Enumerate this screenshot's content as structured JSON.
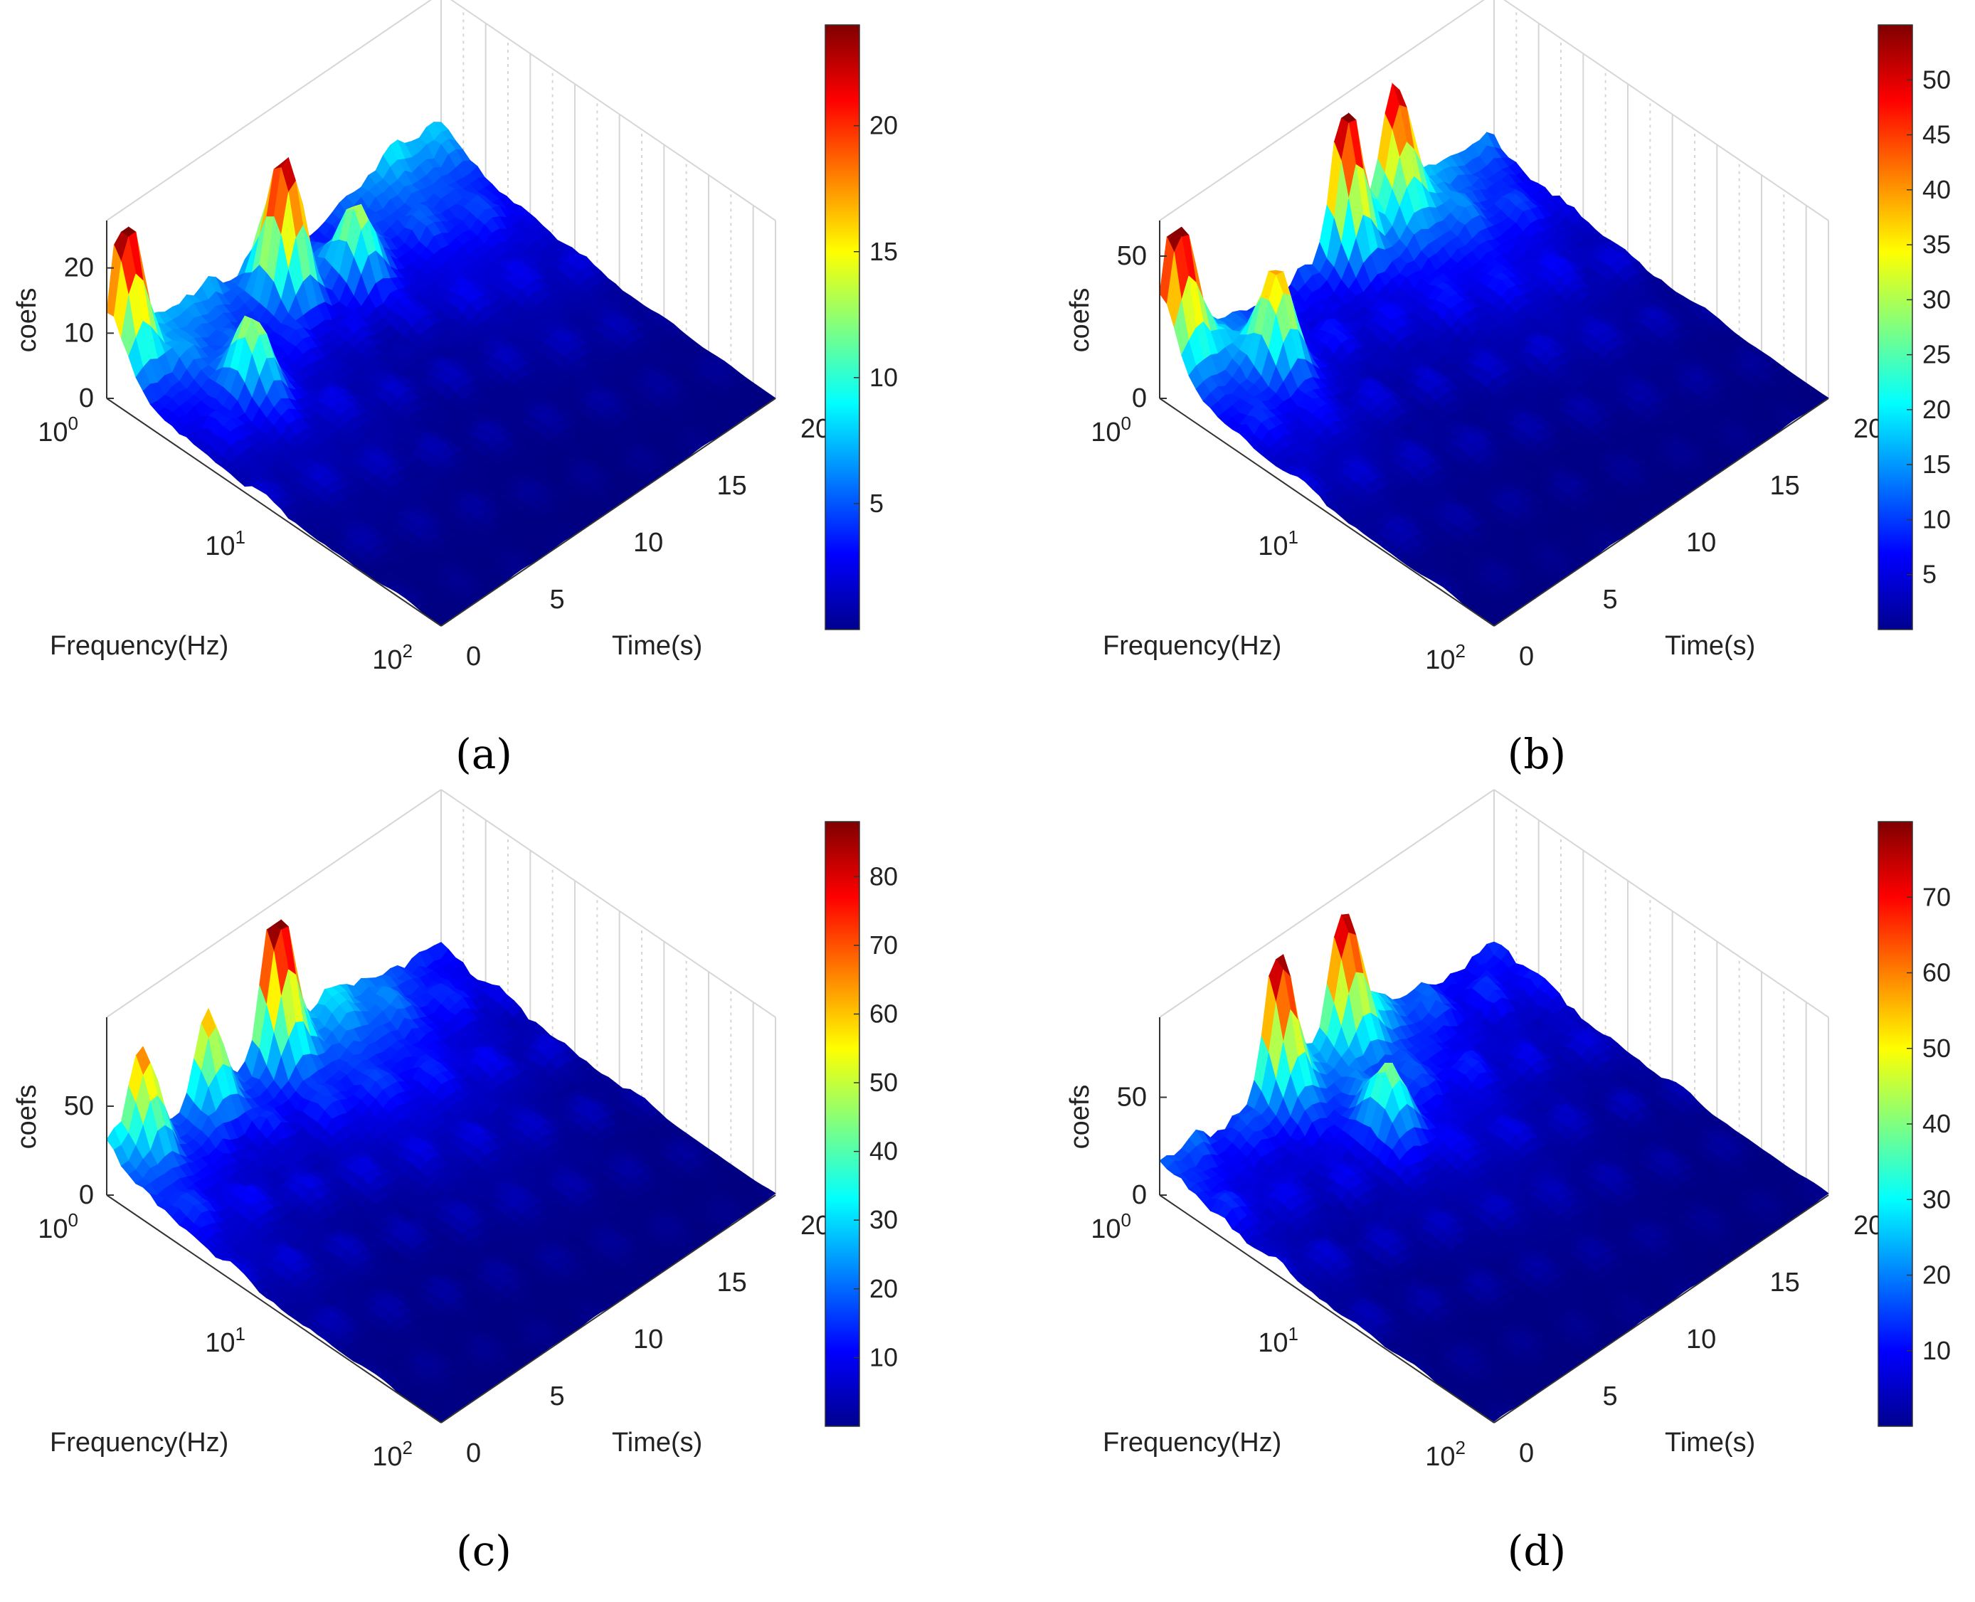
{
  "figure": {
    "panels": [
      {
        "caption": "(a)"
      },
      {
        "caption": "(b)"
      },
      {
        "caption": "(c)"
      },
      {
        "caption": "(d)"
      }
    ]
  },
  "chart_data": [
    {
      "type": "surface",
      "zlabel": "coefs",
      "xlabel": "Frequency(Hz)",
      "ylabel": "Time(s)",
      "x_scale": "log",
      "x_ticks": [
        "10^0",
        "10^1",
        "10^2"
      ],
      "y_ticks": [
        "0",
        "5",
        "10",
        "15",
        "20"
      ],
      "z_ticks": [
        "0",
        "10",
        "20"
      ],
      "zlim": [
        0,
        24
      ],
      "colorbar_ticks": [
        "5",
        "10",
        "15",
        "20"
      ],
      "colorbar_range": [
        0,
        24
      ],
      "colormap": "jet",
      "peaks": [
        {
          "freq": 1,
          "time": 1,
          "value": 23
        },
        {
          "freq": 1.5,
          "time": 9,
          "value": 24
        },
        {
          "freq": 2,
          "time": 12,
          "value": 14
        },
        {
          "freq": 3,
          "time": 4,
          "value": 14
        }
      ]
    },
    {
      "type": "surface",
      "zlabel": "coefs",
      "xlabel": "Frequency(Hz)",
      "ylabel": "Time(s)",
      "x_scale": "log",
      "x_ticks": [
        "10^0",
        "10^1",
        "10^2"
      ],
      "y_ticks": [
        "0",
        "5",
        "10",
        "15",
        "20"
      ],
      "z_ticks": [
        "0",
        "50"
      ],
      "zlim": [
        0,
        55
      ],
      "colorbar_ticks": [
        "5",
        "10",
        "15",
        "20",
        "25",
        "30",
        "35",
        "40",
        "45",
        "50"
      ],
      "colorbar_range": [
        0,
        55
      ],
      "colormap": "jet",
      "peaks": [
        {
          "freq": 1,
          "time": 1,
          "value": 50
        },
        {
          "freq": 1,
          "time": 11,
          "value": 52
        },
        {
          "freq": 1,
          "time": 14,
          "value": 40
        },
        {
          "freq": 2,
          "time": 4,
          "value": 38
        }
      ]
    },
    {
      "type": "surface",
      "zlabel": "coefs",
      "xlabel": "Frequency(Hz)",
      "ylabel": "Time(s)",
      "x_scale": "log",
      "x_ticks": [
        "10^0",
        "10^1",
        "10^2"
      ],
      "y_ticks": [
        "0",
        "5",
        "10",
        "15",
        "20"
      ],
      "z_ticks": [
        "0",
        "50"
      ],
      "zlim": [
        0,
        88
      ],
      "colorbar_ticks": [
        "10",
        "20",
        "30",
        "40",
        "50",
        "60",
        "70",
        "80"
      ],
      "colorbar_range": [
        0,
        88
      ],
      "colormap": "jet",
      "peaks": [
        {
          "freq": 1,
          "time": 10,
          "value": 86
        },
        {
          "freq": 1,
          "time": 6,
          "value": 55
        },
        {
          "freq": 1,
          "time": 2,
          "value": 45
        }
      ]
    },
    {
      "type": "surface",
      "zlabel": "coefs",
      "xlabel": "Frequency(Hz)",
      "ylabel": "Time(s)",
      "x_scale": "log",
      "x_ticks": [
        "10^0",
        "10^1",
        "10^2"
      ],
      "y_ticks": [
        "0",
        "5",
        "10",
        "15",
        "20"
      ],
      "z_ticks": [
        "0",
        "50"
      ],
      "zlim": [
        0,
        80
      ],
      "colorbar_ticks": [
        "10",
        "20",
        "30",
        "40",
        "50",
        "60",
        "70"
      ],
      "colorbar_range": [
        0,
        80
      ],
      "colormap": "jet",
      "peaks": [
        {
          "freq": 1,
          "time": 7,
          "value": 72
        },
        {
          "freq": 1,
          "time": 11,
          "value": 60
        },
        {
          "freq": 3,
          "time": 9,
          "value": 42
        }
      ]
    }
  ]
}
